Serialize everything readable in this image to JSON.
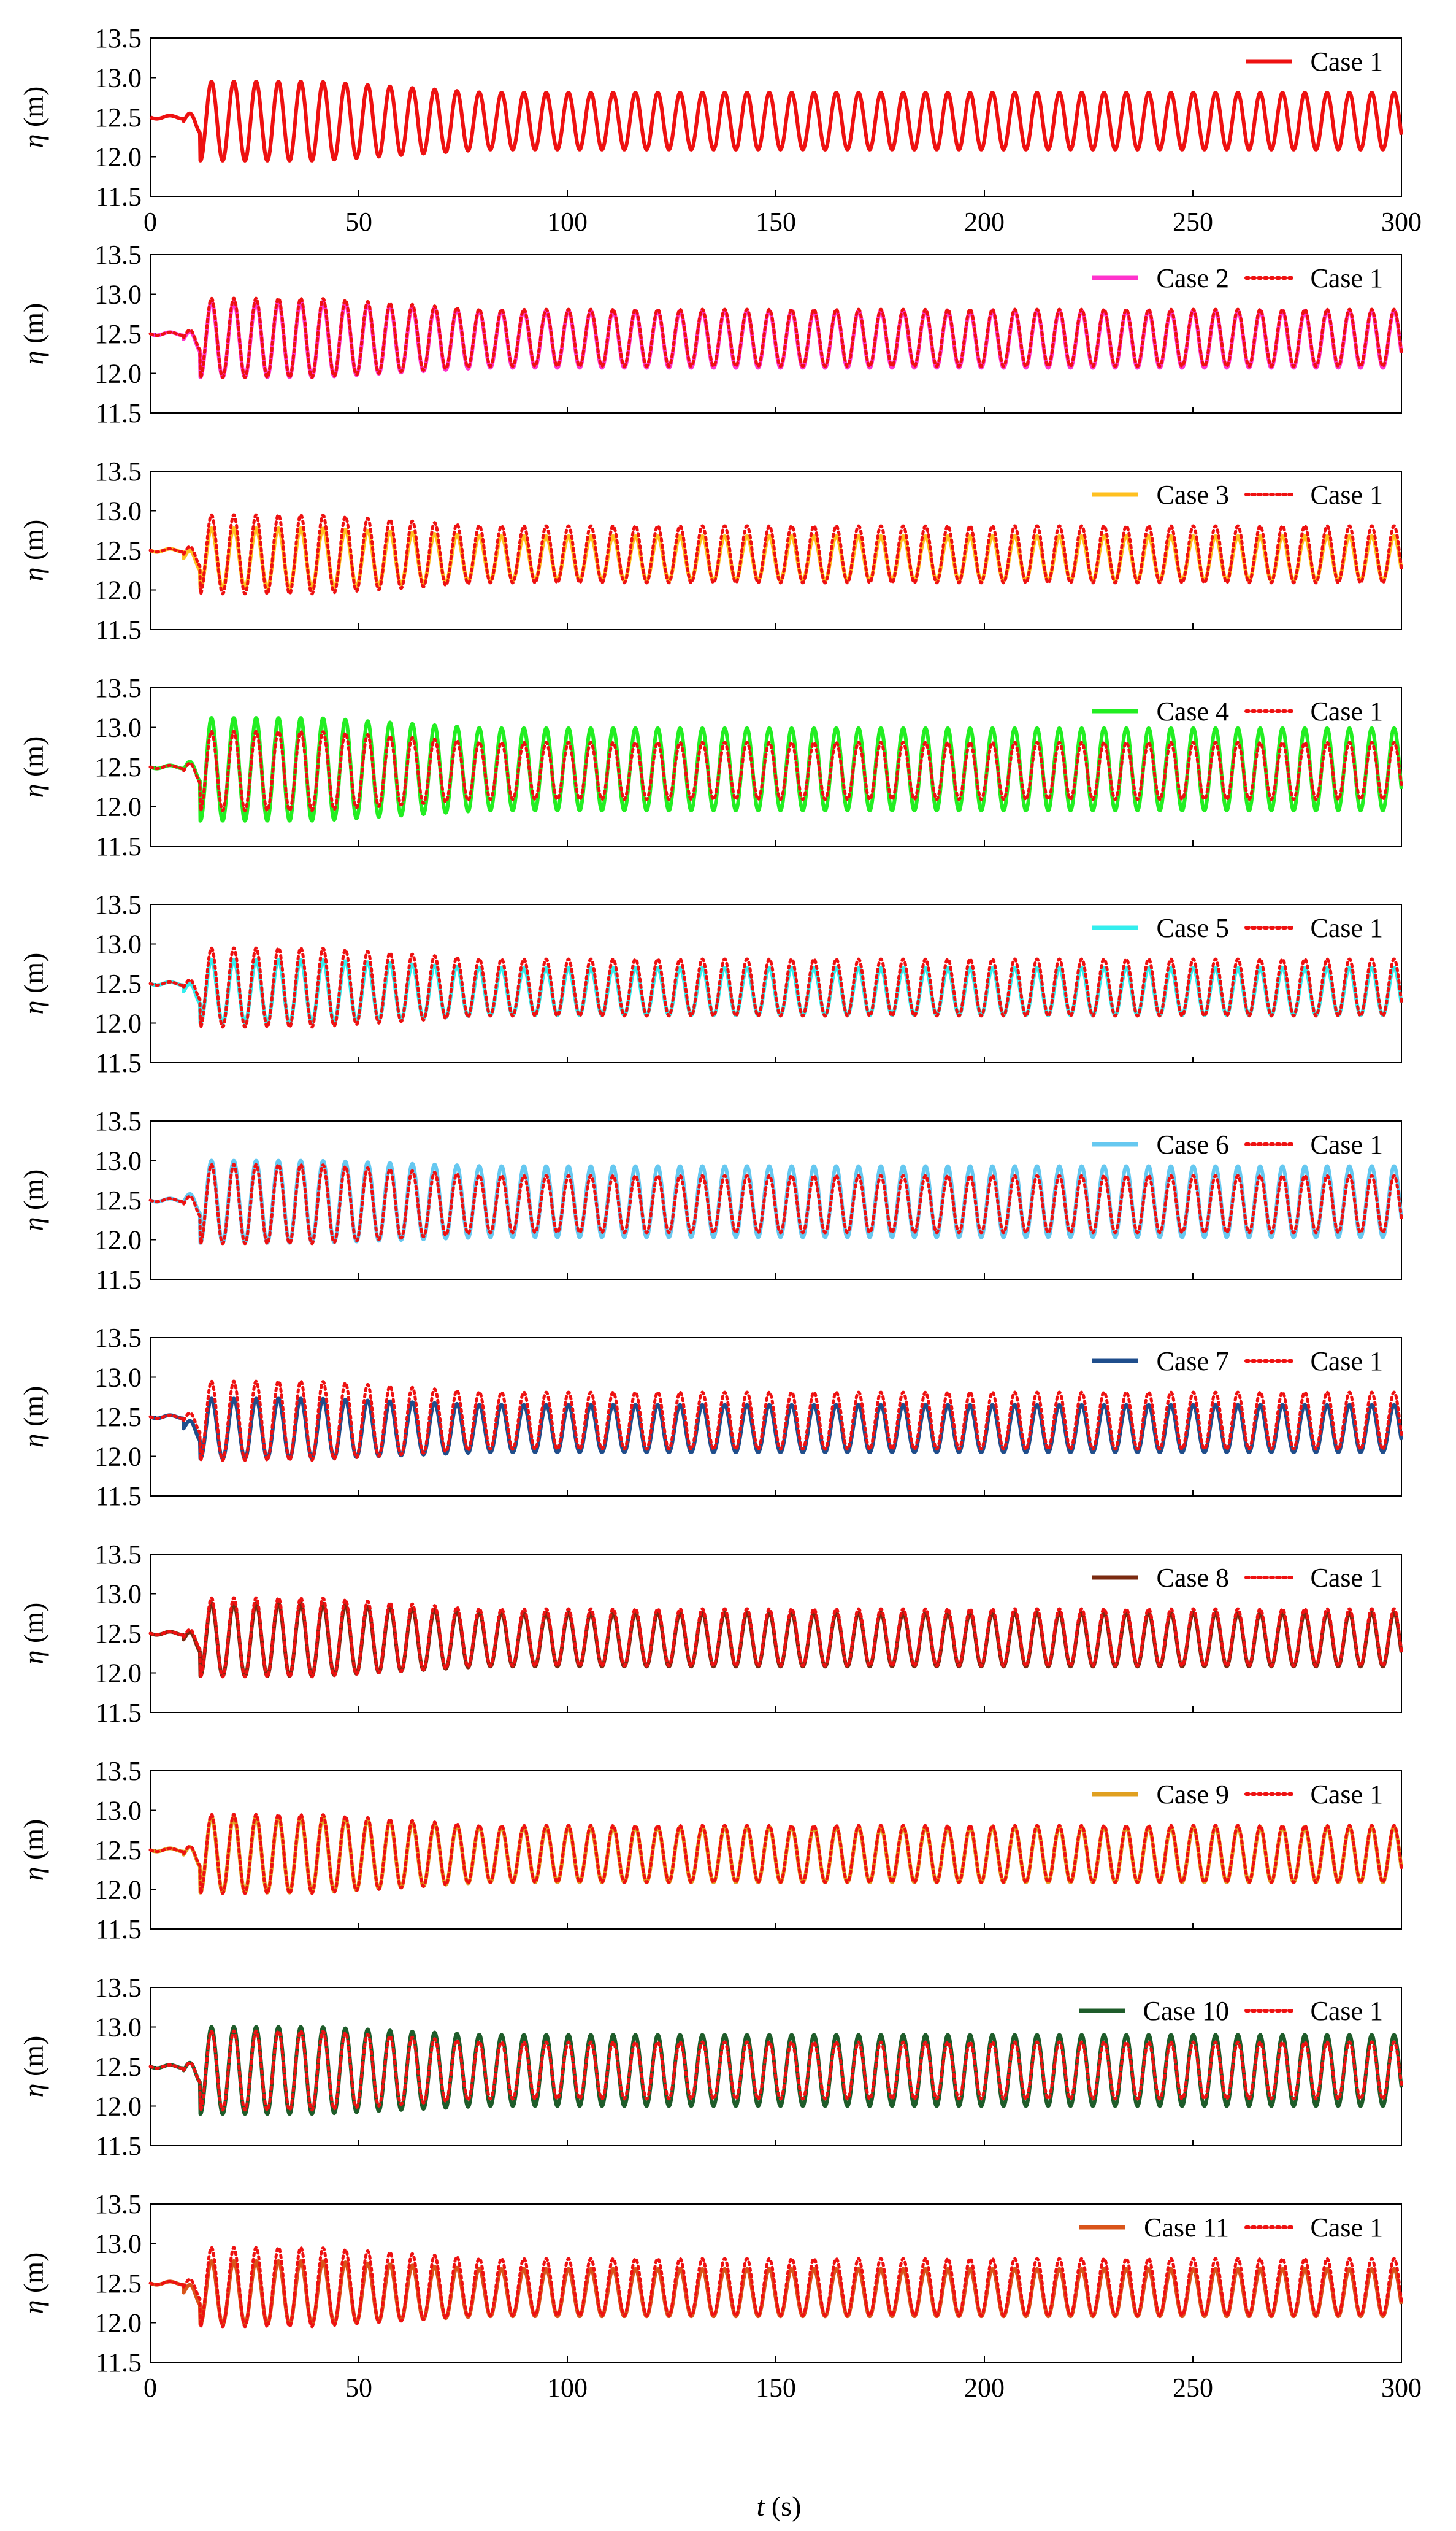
{
  "figure": {
    "xlabel_var": "t",
    "xlabel_unit": " (s)",
    "ylabel_var": "η",
    "ylabel_unit": " (m)"
  },
  "chart_data": [
    {
      "type": "line",
      "panel": 1,
      "title": "",
      "ylim": [
        11.5,
        13.5
      ],
      "xlim": [
        0,
        300
      ],
      "yticks": [
        "13.5",
        "13.0",
        "12.5",
        "12.0",
        "11.5"
      ],
      "xticks": [
        "0",
        "50",
        "100",
        "150",
        "200",
        "250",
        "300"
      ],
      "xlabel": "",
      "ylabel": "η (m)",
      "series": [
        {
          "name": "Case 1",
          "color": "#ee1111",
          "style": "solid",
          "mean": 12.45,
          "amp_steady": 0.36,
          "peak_amp": 0.5,
          "period": 5.35,
          "start": 12.5
        }
      ]
    },
    {
      "type": "line",
      "panel": 2,
      "title": "",
      "ylim": [
        11.5,
        13.5
      ],
      "xlim": [
        0,
        300
      ],
      "yticks": [
        "13.5",
        "13.0",
        "12.5",
        "12.0",
        "11.5"
      ],
      "xticks": [],
      "xlabel": "",
      "ylabel": "η (m)",
      "series": [
        {
          "name": "Case 2",
          "color": "#ff33cc",
          "style": "solid",
          "mean": 12.43,
          "amp_steady": 0.36,
          "peak_amp": 0.48,
          "period": 5.35,
          "start": 12.5
        },
        {
          "name": "Case 1",
          "color": "#ee1111",
          "style": "dotted",
          "mean": 12.45,
          "amp_steady": 0.36,
          "peak_amp": 0.5,
          "period": 5.35,
          "start": 12.5
        }
      ]
    },
    {
      "type": "line",
      "panel": 3,
      "title": "",
      "ylim": [
        11.5,
        13.5
      ],
      "xlim": [
        0,
        300
      ],
      "yticks": [
        "13.5",
        "13.0",
        "12.5",
        "12.0",
        "11.5"
      ],
      "xticks": [],
      "xlabel": "",
      "ylabel": "η (m)",
      "series": [
        {
          "name": "Case 3",
          "color": "#ffc020",
          "style": "solid",
          "mean": 12.4,
          "amp_steady": 0.28,
          "peak_amp": 0.38,
          "period": 5.35,
          "start": 12.5
        },
        {
          "name": "Case 1",
          "color": "#ee1111",
          "style": "dotted",
          "mean": 12.45,
          "amp_steady": 0.36,
          "peak_amp": 0.5,
          "period": 5.35,
          "start": 12.5
        }
      ]
    },
    {
      "type": "line",
      "panel": 4,
      "title": "",
      "ylim": [
        11.5,
        13.5
      ],
      "xlim": [
        0,
        300
      ],
      "yticks": [
        "13.5",
        "13.0",
        "12.5",
        "12.0",
        "11.5"
      ],
      "xticks": [],
      "xlabel": "",
      "ylabel": "η (m)",
      "series": [
        {
          "name": "Case 4",
          "color": "#22ee22",
          "style": "solid",
          "mean": 12.47,
          "amp_steady": 0.52,
          "peak_amp": 0.65,
          "period": 5.35,
          "start": 12.5
        },
        {
          "name": "Case 1",
          "color": "#ee1111",
          "style": "dotted",
          "mean": 12.45,
          "amp_steady": 0.36,
          "peak_amp": 0.5,
          "period": 5.35,
          "start": 12.5
        }
      ]
    },
    {
      "type": "line",
      "panel": 5,
      "title": "",
      "ylim": [
        11.5,
        13.5
      ],
      "xlim": [
        0,
        300
      ],
      "yticks": [
        "13.5",
        "13.0",
        "12.5",
        "12.0",
        "11.5"
      ],
      "xticks": [],
      "xlabel": "",
      "ylabel": "η (m)",
      "series": [
        {
          "name": "Case 5",
          "color": "#33eeee",
          "style": "solid",
          "mean": 12.4,
          "amp_steady": 0.3,
          "peak_amp": 0.4,
          "period": 5.35,
          "start": 12.5
        },
        {
          "name": "Case 1",
          "color": "#ee1111",
          "style": "dotted",
          "mean": 12.45,
          "amp_steady": 0.36,
          "peak_amp": 0.5,
          "period": 5.35,
          "start": 12.5
        }
      ]
    },
    {
      "type": "line",
      "panel": 6,
      "title": "",
      "ylim": [
        11.5,
        13.5
      ],
      "xlim": [
        0,
        300
      ],
      "yticks": [
        "13.5",
        "13.0",
        "12.5",
        "12.0",
        "11.5"
      ],
      "xticks": [],
      "xlabel": "",
      "ylabel": "η (m)",
      "series": [
        {
          "name": "Case 6",
          "color": "#66c8f0",
          "style": "solid",
          "mean": 12.48,
          "amp_steady": 0.45,
          "peak_amp": 0.52,
          "period": 5.35,
          "start": 12.5
        },
        {
          "name": "Case 1",
          "color": "#ee1111",
          "style": "dotted",
          "mean": 12.45,
          "amp_steady": 0.36,
          "peak_amp": 0.5,
          "period": 5.35,
          "start": 12.5
        }
      ]
    },
    {
      "type": "line",
      "panel": 7,
      "title": "",
      "ylim": [
        11.5,
        13.5
      ],
      "xlim": [
        0,
        300
      ],
      "yticks": [
        "13.5",
        "13.0",
        "12.5",
        "12.0",
        "11.5"
      ],
      "xticks": [],
      "xlabel": "",
      "ylabel": "η (m)",
      "series": [
        {
          "name": "Case 7",
          "color": "#1f4e8c",
          "style": "solid",
          "mean": 12.35,
          "amp_steady": 0.3,
          "peak_amp": 0.38,
          "period": 5.35,
          "start": 12.5
        },
        {
          "name": "Case 1",
          "color": "#ee1111",
          "style": "dotted",
          "mean": 12.45,
          "amp_steady": 0.36,
          "peak_amp": 0.5,
          "period": 5.35,
          "start": 12.5
        }
      ]
    },
    {
      "type": "line",
      "panel": 8,
      "title": "",
      "ylim": [
        11.5,
        13.5
      ],
      "xlim": [
        0,
        300
      ],
      "yticks": [
        "13.5",
        "13.0",
        "12.5",
        "12.0",
        "11.5"
      ],
      "xticks": [],
      "xlabel": "",
      "ylabel": "η (m)",
      "series": [
        {
          "name": "Case 8",
          "color": "#7a2a10",
          "style": "solid",
          "mean": 12.42,
          "amp_steady": 0.34,
          "peak_amp": 0.46,
          "period": 5.35,
          "start": 12.5
        },
        {
          "name": "Case 1",
          "color": "#ee1111",
          "style": "dotted",
          "mean": 12.45,
          "amp_steady": 0.36,
          "peak_amp": 0.5,
          "period": 5.35,
          "start": 12.5
        }
      ]
    },
    {
      "type": "line",
      "panel": 9,
      "title": "",
      "ylim": [
        11.5,
        13.5
      ],
      "xlim": [
        0,
        300
      ],
      "yticks": [
        "13.5",
        "13.0",
        "12.5",
        "12.0",
        "11.5"
      ],
      "xticks": [],
      "xlabel": "",
      "ylabel": "η (m)",
      "series": [
        {
          "name": "Case 9",
          "color": "#e0a020",
          "style": "solid",
          "mean": 12.44,
          "amp_steady": 0.35,
          "peak_amp": 0.48,
          "period": 5.35,
          "start": 12.5
        },
        {
          "name": "Case 1",
          "color": "#ee1111",
          "style": "dotted",
          "mean": 12.45,
          "amp_steady": 0.36,
          "peak_amp": 0.5,
          "period": 5.35,
          "start": 12.5
        }
      ]
    },
    {
      "type": "line",
      "panel": 10,
      "title": "",
      "ylim": [
        11.5,
        13.5
      ],
      "xlim": [
        0,
        300
      ],
      "yticks": [
        "13.5",
        "13.0",
        "12.5",
        "12.0",
        "11.5"
      ],
      "xticks": [],
      "xlabel": "",
      "ylabel": "η (m)",
      "series": [
        {
          "name": "Case 10",
          "color": "#1e5c2a",
          "style": "solid",
          "mean": 12.45,
          "amp_steady": 0.45,
          "peak_amp": 0.55,
          "period": 5.35,
          "start": 12.5
        },
        {
          "name": "Case 1",
          "color": "#ee1111",
          "style": "dotted",
          "mean": 12.45,
          "amp_steady": 0.36,
          "peak_amp": 0.5,
          "period": 5.35,
          "start": 12.5
        }
      ]
    },
    {
      "type": "line",
      "panel": 11,
      "title": "",
      "ylim": [
        11.5,
        13.5
      ],
      "xlim": [
        0,
        300
      ],
      "yticks": [
        "13.5",
        "13.0",
        "12.5",
        "12.0",
        "11.5"
      ],
      "xticks": [
        "0",
        "50",
        "100",
        "150",
        "200",
        "250",
        "300"
      ],
      "xlabel": "t (s)",
      "ylabel": "η (m)",
      "series": [
        {
          "name": "Case 11",
          "color": "#d9541a",
          "style": "solid",
          "mean": 12.38,
          "amp_steady": 0.3,
          "peak_amp": 0.4,
          "period": 5.35,
          "start": 12.5
        },
        {
          "name": "Case 1",
          "color": "#ee1111",
          "style": "dotted",
          "mean": 12.45,
          "amp_steady": 0.36,
          "peak_amp": 0.5,
          "period": 5.35,
          "start": 12.5
        }
      ]
    }
  ]
}
